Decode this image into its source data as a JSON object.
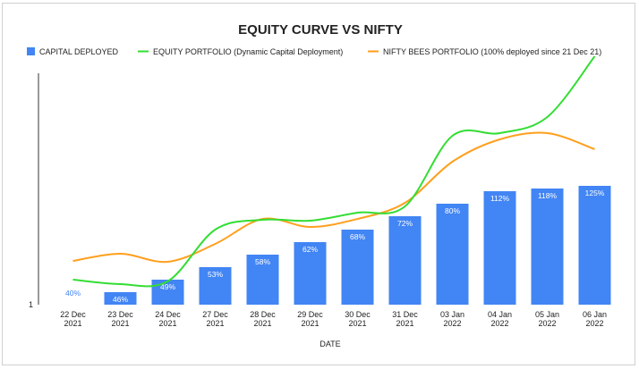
{
  "chart_data": {
    "type": "bar",
    "title": "EQUITY CURVE VS NIFTY",
    "xlabel": "DATE",
    "ylabel": "",
    "y_tick_labels": [
      "1"
    ],
    "legend_position": "top",
    "grid": false,
    "categories": [
      [
        "22 Dec",
        "2021"
      ],
      [
        "23 Dec",
        "2021"
      ],
      [
        "24 Dec",
        "2021"
      ],
      [
        "27 Dec",
        "2021"
      ],
      [
        "28 Dec",
        "2021"
      ],
      [
        "29 Dec",
        "2021"
      ],
      [
        "30 Dec",
        "2021"
      ],
      [
        "31 Dec",
        "2021"
      ],
      [
        "03 Jan",
        "2022"
      ],
      [
        "04 Jan",
        "2022"
      ],
      [
        "05 Jan",
        "2022"
      ],
      [
        "06 Jan",
        "2022"
      ]
    ],
    "series": [
      {
        "name": "CAPITAL DEPLOYED",
        "type": "bar",
        "color": "#4285f4",
        "values": [
          40,
          46,
          49,
          53,
          58,
          62,
          68,
          72,
          80,
          112,
          118,
          125
        ],
        "labels": [
          "40%",
          "46%",
          "49%",
          "53%",
          "58%",
          "62%",
          "68%",
          "72%",
          "80%",
          "112%",
          "118%",
          "125%"
        ],
        "rel_height": [
          0.0,
          0.056,
          0.112,
          0.168,
          0.224,
          0.28,
          0.336,
          0.396,
          0.452,
          0.508,
          0.52,
          0.532
        ]
      },
      {
        "name": "EQUITY PORTFOLIO (Dynamic Capital Deployment)",
        "type": "line",
        "color": "#33dd33",
        "rel_values": [
          0.112,
          0.092,
          0.105,
          0.336,
          0.38,
          0.376,
          0.412,
          0.44,
          0.756,
          0.768,
          0.84,
          1.112
        ]
      },
      {
        "name": "NIFTY BEES PORTFOLIO (100% deployed since 21 Dec 21)",
        "type": "line",
        "color": "#ff9f1c",
        "rel_values": [
          0.196,
          0.228,
          0.192,
          0.272,
          0.384,
          0.348,
          0.384,
          0.456,
          0.64,
          0.74,
          0.768,
          0.696
        ]
      }
    ]
  }
}
